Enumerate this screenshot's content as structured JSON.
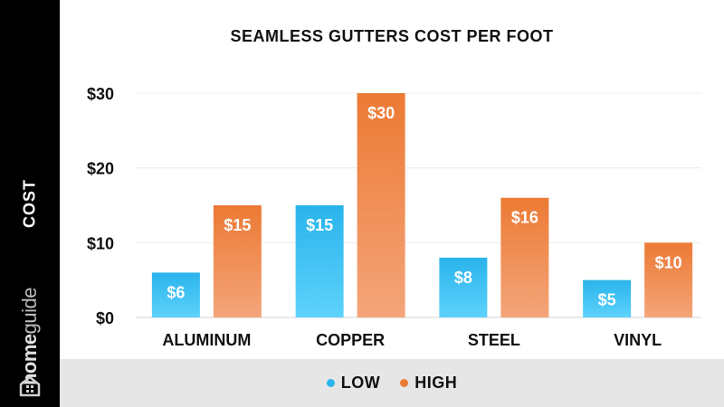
{
  "brand": {
    "part1": "home",
    "part2": "guide",
    "icon": "house-icon"
  },
  "colors": {
    "low_top": "#2ab4ec",
    "low_bottom": "#5dd2fb",
    "high_top": "#ec7a34",
    "high_bottom": "#f4a57a",
    "sidebar": "#000000",
    "legend_band": "#e6e6e6"
  },
  "legend": {
    "low": "LOW",
    "high": "HIGH"
  },
  "chart_data": {
    "type": "bar",
    "title": "SEAMLESS GUTTERS COST PER FOOT",
    "xlabel": "",
    "ylabel": "COST",
    "ylim": [
      0,
      30
    ],
    "yticks": [
      "$0",
      "$10",
      "$20",
      "$30"
    ],
    "ytick_values": [
      0,
      10,
      20,
      30
    ],
    "grid": true,
    "legend_position": "bottom",
    "categories": [
      "ALUMINUM",
      "COPPER",
      "STEEL",
      "VINYL"
    ],
    "series": [
      {
        "name": "LOW",
        "values": [
          6,
          15,
          8,
          5
        ],
        "labels": [
          "$6",
          "$15",
          "$8",
          "$5"
        ]
      },
      {
        "name": "HIGH",
        "values": [
          15,
          30,
          16,
          10
        ],
        "labels": [
          "$15",
          "$30",
          "$16",
          "$10"
        ]
      }
    ]
  }
}
